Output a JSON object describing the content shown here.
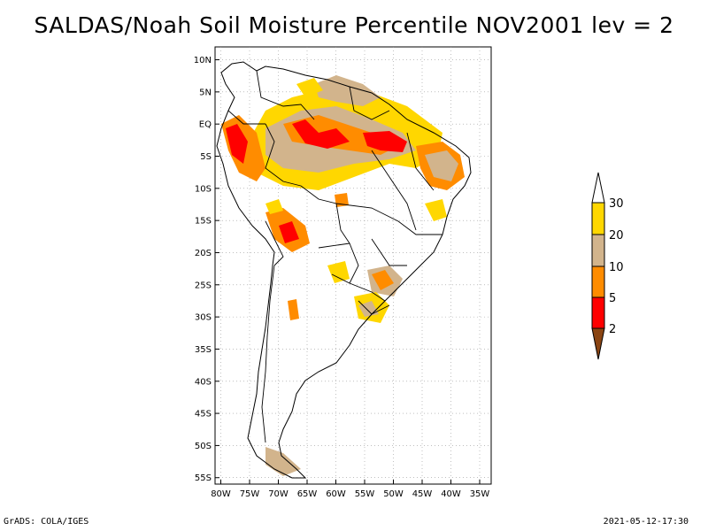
{
  "title": "SALDAS/Noah Soil Moisture Percentile NOV2001 lev = 2",
  "footer": {
    "credit": "GrADS: COLA/IGES",
    "timestamp": "2021-05-12-17:30"
  },
  "map": {
    "lat_labels": [
      "10N",
      "5N",
      "EQ",
      "5S",
      "10S",
      "15S",
      "20S",
      "25S",
      "30S",
      "35S",
      "40S",
      "45S",
      "50S",
      "55S"
    ],
    "lat_values": [
      10,
      5,
      0,
      -5,
      -10,
      -15,
      -20,
      -25,
      -30,
      -35,
      -40,
      -45,
      -50,
      -55
    ],
    "lon_labels": [
      "80W",
      "75W",
      "70W",
      "65W",
      "60W",
      "55W",
      "50W",
      "45W",
      "40W",
      "35W"
    ],
    "lon_values": [
      -80,
      -75,
      -70,
      -65,
      -60,
      -55,
      -50,
      -45,
      -40,
      -35
    ],
    "lat_range": [
      -56,
      12
    ],
    "lon_range": [
      -81,
      -33
    ],
    "gridlines": true
  },
  "legend": {
    "levels": [
      "2",
      "5",
      "10",
      "20",
      "30"
    ],
    "colors": {
      "below_2": "#8b4513",
      "2_to_5": "#ff0000",
      "5_to_10": "#ff8c00",
      "10_to_20": "#d2b48c",
      "20_to_30": "#ffd700",
      "above_30": "#ffffff"
    }
  }
}
